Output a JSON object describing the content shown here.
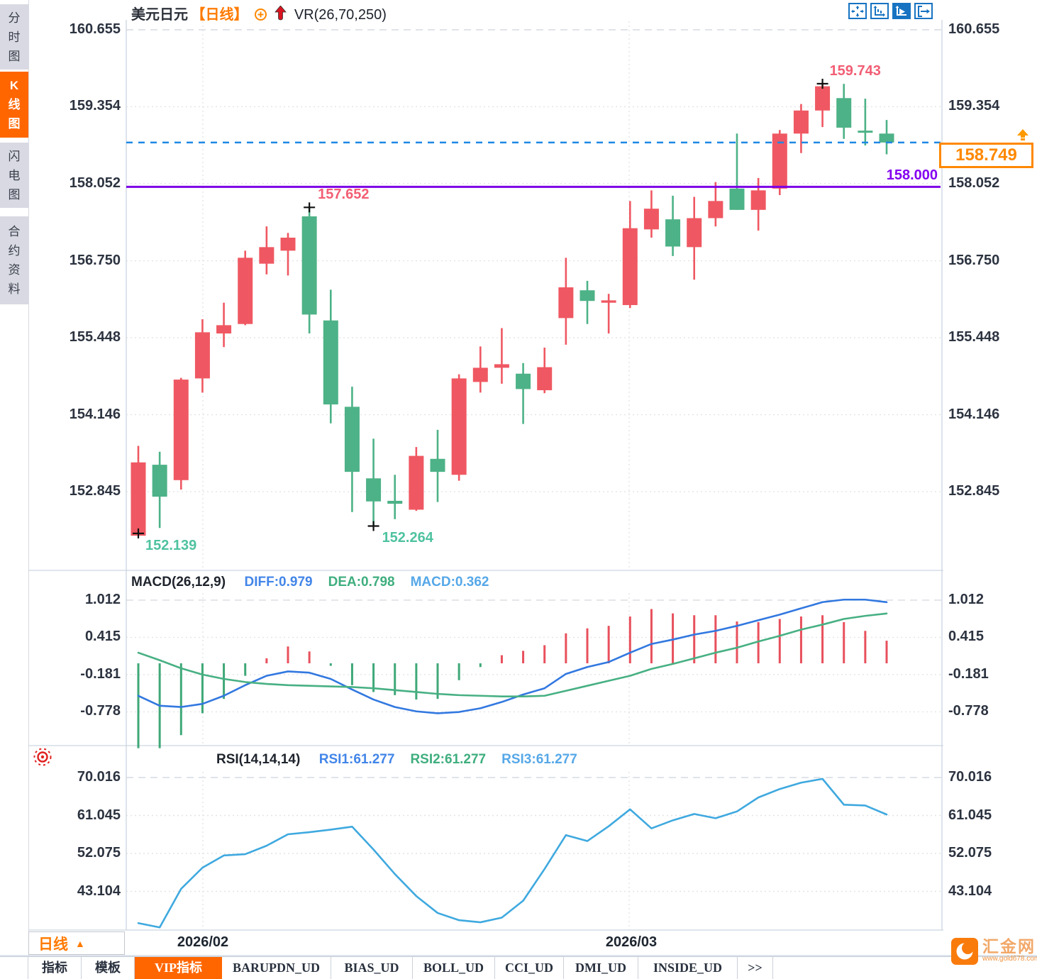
{
  "header": {
    "symbol": "美元日元",
    "period_tag": "【日线】",
    "indicator": "VR(26,70,250)"
  },
  "toolbar": {
    "icons": [
      {
        "name": "pan-crosshair-icon",
        "active": false
      },
      {
        "name": "zoom-axes-icon",
        "active": false
      },
      {
        "name": "play-axes-icon",
        "active": true
      },
      {
        "name": "exit-panel-icon",
        "active": false
      }
    ]
  },
  "sidebar": {
    "tabs": [
      {
        "label": "分时图",
        "active": false
      },
      {
        "label": "K线图",
        "active": true
      },
      {
        "label": "闪电图",
        "active": false
      },
      {
        "label": "合约资料",
        "active": false
      }
    ]
  },
  "price_panel": {
    "y_ticks": [
      "160.655",
      "159.354",
      "158.052",
      "156.750",
      "155.448",
      "154.146",
      "152.845"
    ],
    "current_price_tag": "158.749",
    "level_label": "158.000"
  },
  "macd_panel": {
    "title": "MACD(26,12,9)",
    "values": [
      {
        "label": "DIFF:0.979",
        "color": "#4285e8"
      },
      {
        "label": "DEA:0.798",
        "color": "#3fae7e"
      },
      {
        "label": "MACD:0.362",
        "color": "#56a8e8"
      }
    ],
    "y_ticks": [
      "1.012",
      "0.415",
      "-0.181",
      "-0.778"
    ]
  },
  "rsi_panel": {
    "title": "RSI(14,14,14)",
    "values": [
      {
        "label": "RSI1:61.277",
        "color": "#4285e8"
      },
      {
        "label": "RSI2:61.277",
        "color": "#3fae7e"
      },
      {
        "label": "RSI3:61.277",
        "color": "#56a8e8"
      }
    ],
    "y_ticks": [
      "70.016",
      "61.045",
      "52.075",
      "43.104"
    ]
  },
  "x_axis": {
    "period_button": "日线",
    "dates": [
      "2026/02",
      "2026/03"
    ]
  },
  "bottom_tabs": [
    {
      "label": "指标",
      "active": false
    },
    {
      "label": "模板",
      "active": false
    },
    {
      "label": "VIP指标",
      "active": true
    },
    {
      "label": "BARUPDN_UD",
      "active": false
    },
    {
      "label": "BIAS_UD",
      "active": false
    },
    {
      "label": "BOLL_UD",
      "active": false
    },
    {
      "label": "CCI_UD",
      "active": false
    },
    {
      "label": "DMI_UD",
      "active": false
    },
    {
      "label": "INSIDE_UD",
      "active": false
    },
    {
      "label": ">>",
      "active": false
    }
  ],
  "watermark": {
    "name": "汇金网",
    "url": "www.gold678.com"
  },
  "colors": {
    "up": "#ef5862",
    "down": "#4db287",
    "diff_line": "#3278e0",
    "dea_line": "#47b083",
    "rsi_line": "#3fa9df",
    "dashed_level": "#1e88e5",
    "support_level": "#7d00e6",
    "accent_orange": "#ff6600",
    "tag_orange": "#ff8800",
    "high_label": "#f25e74",
    "low_label": "#4fc2a0"
  },
  "chart_data": {
    "type": "candlestick",
    "title": "美元日元 (USD/JPY) 日线",
    "panels": [
      "price",
      "MACD(26,12,9)",
      "RSI(14,14,14)"
    ],
    "price_axis_ticks": [
      160.655,
      159.354,
      158.052,
      156.75,
      155.448,
      154.146,
      152.845
    ],
    "visible_dates": [
      "2026/02",
      "2026/03"
    ],
    "candles_ohlc": [
      [
        152.1,
        153.62,
        152.139,
        153.34
      ],
      [
        153.3,
        153.52,
        152.23,
        152.76
      ],
      [
        153.04,
        154.77,
        152.88,
        154.74
      ],
      [
        154.76,
        155.76,
        154.52,
        155.54
      ],
      [
        155.52,
        156.04,
        155.29,
        155.66
      ],
      [
        155.68,
        156.92,
        155.66,
        156.8
      ],
      [
        156.7,
        157.33,
        156.52,
        156.98
      ],
      [
        156.92,
        157.22,
        156.5,
        157.14
      ],
      [
        157.5,
        157.652,
        155.52,
        155.84
      ],
      [
        155.74,
        156.26,
        154.0,
        154.32
      ],
      [
        154.28,
        154.62,
        152.5,
        153.18
      ],
      [
        153.07,
        153.74,
        152.264,
        152.68
      ],
      [
        152.69,
        153.13,
        152.38,
        152.64
      ],
      [
        152.54,
        153.6,
        152.52,
        153.45
      ],
      [
        153.4,
        153.89,
        152.67,
        153.18
      ],
      [
        153.13,
        154.83,
        153.03,
        154.76
      ],
      [
        154.7,
        155.3,
        154.52,
        154.94
      ],
      [
        154.94,
        155.61,
        154.67,
        155.0
      ],
      [
        154.84,
        155.02,
        153.99,
        154.58
      ],
      [
        154.56,
        155.28,
        154.51,
        154.95
      ],
      [
        155.78,
        156.8,
        155.33,
        156.3
      ],
      [
        156.25,
        156.41,
        155.68,
        156.07
      ],
      [
        156.04,
        156.19,
        155.52,
        156.08
      ],
      [
        156.0,
        157.76,
        155.95,
        157.3
      ],
      [
        157.28,
        157.94,
        157.14,
        157.63
      ],
      [
        157.45,
        157.85,
        156.83,
        156.99
      ],
      [
        156.98,
        157.83,
        156.43,
        157.47
      ],
      [
        157.47,
        158.08,
        157.33,
        157.76
      ],
      [
        157.97,
        158.9,
        157.61,
        157.61
      ],
      [
        157.61,
        158.15,
        157.26,
        157.94
      ],
      [
        157.97,
        158.96,
        157.86,
        158.9
      ],
      [
        158.9,
        159.4,
        158.57,
        159.29
      ],
      [
        159.29,
        159.743,
        159.01,
        159.7
      ],
      [
        159.5,
        159.74,
        158.81,
        159.0
      ],
      [
        158.95,
        159.49,
        158.7,
        158.93
      ],
      [
        158.9,
        159.13,
        158.55,
        158.749
      ]
    ],
    "marked_points": [
      {
        "candle": 0,
        "pos": "low",
        "label": "152.139"
      },
      {
        "candle": 8,
        "pos": "high",
        "label": "157.652"
      },
      {
        "candle": 11,
        "pos": "low",
        "label": "152.264"
      },
      {
        "candle": 32,
        "pos": "high",
        "label": "159.743"
      }
    ],
    "levels": {
      "current_price": 158.749,
      "horizontal_line": 158.0
    },
    "macd": {
      "params": [
        26,
        12,
        9
      ],
      "current": {
        "diff": 0.979,
        "dea": 0.798,
        "macd": 0.362
      },
      "axis_ticks": [
        1.012,
        0.415,
        -0.181,
        -0.778
      ],
      "diff": [
        -0.52,
        -0.68,
        -0.7,
        -0.65,
        -0.52,
        -0.35,
        -0.2,
        -0.13,
        -0.15,
        -0.25,
        -0.42,
        -0.58,
        -0.7,
        -0.77,
        -0.8,
        -0.78,
        -0.72,
        -0.62,
        -0.5,
        -0.4,
        -0.17,
        -0.06,
        0.02,
        0.17,
        0.31,
        0.38,
        0.46,
        0.52,
        0.6,
        0.69,
        0.78,
        0.88,
        0.98,
        1.02,
        1.02,
        0.979
      ],
      "dea": [
        0.17,
        0.05,
        -0.08,
        -0.18,
        -0.25,
        -0.3,
        -0.33,
        -0.35,
        -0.36,
        -0.37,
        -0.38,
        -0.4,
        -0.43,
        -0.46,
        -0.49,
        -0.51,
        -0.52,
        -0.53,
        -0.53,
        -0.52,
        -0.44,
        -0.36,
        -0.28,
        -0.2,
        -0.09,
        -0.01,
        0.08,
        0.17,
        0.25,
        0.35,
        0.44,
        0.54,
        0.62,
        0.71,
        0.76,
        0.798
      ],
      "hist": [
        -1.36,
        -1.36,
        -1.15,
        -0.8,
        -0.57,
        -0.2,
        0.08,
        0.27,
        0.19,
        -0.04,
        -0.35,
        -0.46,
        -0.51,
        -0.58,
        -0.57,
        -0.27,
        -0.06,
        0.13,
        0.2,
        0.29,
        0.48,
        0.56,
        0.6,
        0.75,
        0.87,
        0.8,
        0.77,
        0.77,
        0.67,
        0.66,
        0.71,
        0.75,
        0.77,
        0.66,
        0.52,
        0.362
      ],
      "legend_position": "top"
    },
    "rsi": {
      "params": [
        14,
        14,
        14
      ],
      "current": {
        "rsi1": 61.277,
        "rsi2": 61.277,
        "rsi3": 61.277
      },
      "axis_ticks": [
        70.016,
        61.045,
        52.075,
        43.104
      ],
      "values": [
        35.6,
        34.6,
        43.7,
        48.7,
        51.6,
        51.9,
        53.9,
        56.6,
        57.1,
        57.7,
        58.4,
        53.0,
        47.2,
        42.0,
        38.0,
        36.3,
        35.8,
        36.9,
        40.9,
        48.4,
        56.4,
        55.0,
        58.5,
        62.5,
        58.0,
        59.9,
        61.4,
        60.4,
        62.0,
        65.3,
        67.3,
        68.8,
        69.7,
        63.6,
        63.4,
        61.277
      ]
    },
    "grid": "dotted"
  }
}
